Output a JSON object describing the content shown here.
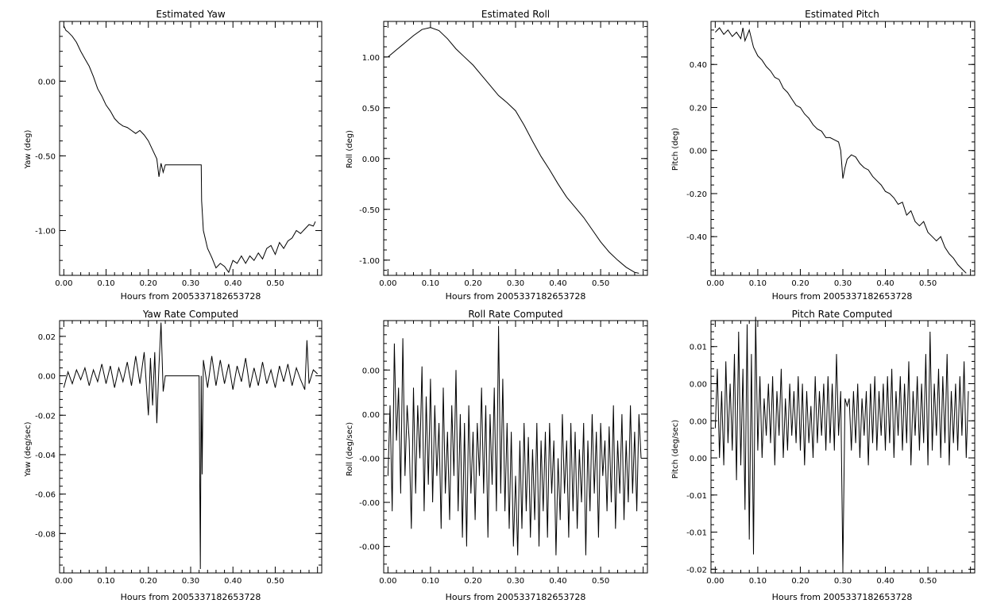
{
  "chart_data": [
    {
      "type": "line",
      "title": "Estimated Yaw",
      "xlabel": "Hours from 2005337182653728",
      "ylabel": "Yaw (deg)",
      "xlim": [
        -0.01,
        0.61
      ],
      "ylim": [
        -1.3,
        0.4
      ],
      "xticks": [
        "0.00",
        "0.10",
        "0.20",
        "0.30",
        "0.40",
        "0.50"
      ],
      "yticks": [
        {
          "value": 0.0,
          "label": "0.00"
        },
        {
          "value": -0.5,
          "label": "-0.50"
        },
        {
          "value": -1.0,
          "label": "-1.00"
        }
      ],
      "grid": false,
      "line_color": "#000000",
      "x": [
        0.0,
        0.005,
        0.01,
        0.02,
        0.03,
        0.04,
        0.05,
        0.06,
        0.07,
        0.08,
        0.09,
        0.1,
        0.11,
        0.12,
        0.13,
        0.14,
        0.15,
        0.16,
        0.17,
        0.18,
        0.19,
        0.2,
        0.21,
        0.22,
        0.225,
        0.23,
        0.235,
        0.24,
        0.25,
        0.27,
        0.29,
        0.31,
        0.325,
        0.326,
        0.33,
        0.34,
        0.35,
        0.36,
        0.37,
        0.38,
        0.39,
        0.4,
        0.41,
        0.42,
        0.43,
        0.44,
        0.45,
        0.46,
        0.47,
        0.48,
        0.49,
        0.5,
        0.51,
        0.52,
        0.53,
        0.54,
        0.55,
        0.56,
        0.57,
        0.58,
        0.59,
        0.595
      ],
      "y": [
        0.37,
        0.34,
        0.33,
        0.3,
        0.26,
        0.2,
        0.15,
        0.1,
        0.03,
        -0.05,
        -0.1,
        -0.16,
        -0.2,
        -0.25,
        -0.28,
        -0.3,
        -0.31,
        -0.33,
        -0.35,
        -0.33,
        -0.36,
        -0.4,
        -0.46,
        -0.52,
        -0.64,
        -0.55,
        -0.61,
        -0.56,
        -0.56,
        -0.56,
        -0.56,
        -0.56,
        -0.56,
        -0.8,
        -1.0,
        -1.12,
        -1.18,
        -1.25,
        -1.22,
        -1.24,
        -1.28,
        -1.2,
        -1.22,
        -1.17,
        -1.22,
        -1.17,
        -1.2,
        -1.15,
        -1.19,
        -1.12,
        -1.1,
        -1.16,
        -1.08,
        -1.12,
        -1.07,
        -1.05,
        -1.0,
        -1.02,
        -0.99,
        -0.96,
        -0.97,
        -0.94
      ]
    },
    {
      "type": "line",
      "title": "Estimated Roll",
      "xlabel": "Hours from 2005337182653728",
      "ylabel": "Roll (deg)",
      "xlim": [
        -0.01,
        0.61
      ],
      "ylim": [
        -1.15,
        1.35
      ],
      "xticks": [
        "0.00",
        "0.10",
        "0.20",
        "0.30",
        "0.40",
        "0.50"
      ],
      "yticks": [
        {
          "value": 1.0,
          "label": "1.00"
        },
        {
          "value": 0.5,
          "label": "0.50"
        },
        {
          "value": 0.0,
          "label": "0.00"
        },
        {
          "value": -0.5,
          "label": "-0.50"
        },
        {
          "value": -1.0,
          "label": "-1.00"
        }
      ],
      "grid": false,
      "line_color": "#000000",
      "x": [
        0.0,
        0.02,
        0.04,
        0.06,
        0.08,
        0.1,
        0.12,
        0.14,
        0.16,
        0.18,
        0.2,
        0.22,
        0.24,
        0.26,
        0.28,
        0.3,
        0.32,
        0.34,
        0.36,
        0.38,
        0.4,
        0.42,
        0.44,
        0.46,
        0.48,
        0.5,
        0.52,
        0.54,
        0.56,
        0.58,
        0.59
      ],
      "y": [
        1.0,
        1.07,
        1.14,
        1.21,
        1.27,
        1.29,
        1.26,
        1.18,
        1.08,
        1.0,
        0.92,
        0.82,
        0.72,
        0.62,
        0.55,
        0.47,
        0.33,
        0.17,
        0.02,
        -0.11,
        -0.25,
        -0.38,
        -0.48,
        -0.58,
        -0.7,
        -0.82,
        -0.92,
        -1.0,
        -1.07,
        -1.12,
        -1.13
      ]
    },
    {
      "type": "line",
      "title": "Estimated Pitch",
      "xlabel": "Hours from 2005337182653728",
      "ylabel": "Pitch (deg)",
      "xlim": [
        -0.01,
        0.61
      ],
      "ylim": [
        -0.58,
        0.6
      ],
      "xticks": [
        "0.00",
        "0.10",
        "0.20",
        "0.30",
        "0.40",
        "0.50"
      ],
      "yticks": [
        {
          "value": 0.4,
          "label": "0.40"
        },
        {
          "value": 0.2,
          "label": "0.20"
        },
        {
          "value": 0.0,
          "label": "0.00"
        },
        {
          "value": -0.2,
          "label": "-0.20"
        },
        {
          "value": -0.4,
          "label": "-0.40"
        }
      ],
      "grid": false,
      "line_color": "#000000",
      "x": [
        0.0,
        0.01,
        0.02,
        0.03,
        0.04,
        0.05,
        0.06,
        0.065,
        0.07,
        0.08,
        0.09,
        0.1,
        0.11,
        0.12,
        0.13,
        0.14,
        0.15,
        0.16,
        0.17,
        0.18,
        0.19,
        0.2,
        0.21,
        0.22,
        0.23,
        0.24,
        0.25,
        0.26,
        0.27,
        0.28,
        0.29,
        0.295,
        0.3,
        0.305,
        0.31,
        0.32,
        0.33,
        0.34,
        0.35,
        0.36,
        0.37,
        0.38,
        0.39,
        0.4,
        0.41,
        0.42,
        0.43,
        0.44,
        0.45,
        0.46,
        0.47,
        0.48,
        0.49,
        0.5,
        0.51,
        0.52,
        0.53,
        0.54,
        0.55,
        0.56,
        0.57,
        0.58,
        0.59
      ],
      "y": [
        0.55,
        0.57,
        0.54,
        0.56,
        0.53,
        0.55,
        0.52,
        0.57,
        0.51,
        0.56,
        0.48,
        0.44,
        0.42,
        0.39,
        0.37,
        0.34,
        0.33,
        0.29,
        0.27,
        0.24,
        0.21,
        0.2,
        0.17,
        0.15,
        0.12,
        0.1,
        0.09,
        0.06,
        0.06,
        0.05,
        0.04,
        0.0,
        -0.13,
        -0.08,
        -0.04,
        -0.02,
        -0.03,
        -0.06,
        -0.08,
        -0.09,
        -0.12,
        -0.14,
        -0.16,
        -0.19,
        -0.2,
        -0.22,
        -0.25,
        -0.24,
        -0.3,
        -0.28,
        -0.33,
        -0.35,
        -0.33,
        -0.38,
        -0.4,
        -0.42,
        -0.4,
        -0.45,
        -0.48,
        -0.5,
        -0.53,
        -0.55,
        -0.57
      ]
    },
    {
      "type": "line",
      "title": "Yaw Rate Computed",
      "xlabel": "Hours from 2005337182653728",
      "ylabel": "Yaw (deg/sec)",
      "xlim": [
        -0.01,
        0.61
      ],
      "ylim": [
        -0.1,
        0.028
      ],
      "xticks": [
        "0.00",
        "0.10",
        "0.20",
        "0.30",
        "0.40",
        "0.50"
      ],
      "yticks": [
        {
          "value": 0.02,
          "label": "0.02"
        },
        {
          "value": 0.0,
          "label": "0.00"
        },
        {
          "value": -0.02,
          "label": "-0.02"
        },
        {
          "value": -0.04,
          "label": "-0.04"
        },
        {
          "value": -0.06,
          "label": "-0.06"
        },
        {
          "value": -0.08,
          "label": "-0.08"
        }
      ],
      "grid": false,
      "line_color": "#000000",
      "x": [
        0.0,
        0.01,
        0.02,
        0.03,
        0.04,
        0.05,
        0.06,
        0.07,
        0.08,
        0.09,
        0.1,
        0.11,
        0.12,
        0.13,
        0.14,
        0.15,
        0.16,
        0.17,
        0.18,
        0.19,
        0.2,
        0.205,
        0.21,
        0.215,
        0.22,
        0.225,
        0.23,
        0.235,
        0.24,
        0.26,
        0.28,
        0.3,
        0.32,
        0.323,
        0.325,
        0.327,
        0.33,
        0.34,
        0.35,
        0.36,
        0.37,
        0.38,
        0.39,
        0.4,
        0.41,
        0.42,
        0.43,
        0.44,
        0.45,
        0.46,
        0.47,
        0.48,
        0.49,
        0.5,
        0.51,
        0.52,
        0.53,
        0.54,
        0.55,
        0.56,
        0.57,
        0.575,
        0.58,
        0.59,
        0.6
      ],
      "y": [
        -0.006,
        0.002,
        -0.004,
        0.003,
        -0.002,
        0.004,
        -0.005,
        0.003,
        -0.003,
        0.006,
        -0.004,
        0.005,
        -0.006,
        0.004,
        -0.003,
        0.007,
        -0.005,
        0.01,
        -0.004,
        0.012,
        -0.02,
        0.009,
        -0.015,
        0.012,
        -0.024,
        0.005,
        0.027,
        -0.008,
        0.0,
        0.0,
        0.0,
        0.0,
        0.0,
        -0.098,
        0.0,
        -0.05,
        0.008,
        -0.006,
        0.01,
        -0.005,
        0.008,
        -0.004,
        0.006,
        -0.007,
        0.005,
        -0.003,
        0.009,
        -0.006,
        0.004,
        -0.005,
        0.007,
        -0.004,
        0.003,
        -0.006,
        0.005,
        -0.003,
        0.006,
        -0.005,
        0.004,
        -0.002,
        -0.007,
        0.018,
        -0.004,
        0.003,
        0.001
      ]
    },
    {
      "type": "line",
      "title": "Roll Rate Computed",
      "xlabel": "Hours from 2005337182653728",
      "ylabel": "Roll (deg/sec)",
      "xlim": [
        -0.01,
        0.61
      ],
      "ylim": [
        -0.065,
        0.078
      ],
      "xticks": [
        "0.00",
        "0.10",
        "0.20",
        "0.30",
        "0.40",
        "0.50"
      ],
      "yticks": [
        {
          "value": 0.05,
          "label": "0.00"
        },
        {
          "value": 0.025,
          "label": "0.00"
        },
        {
          "value": 0.0,
          "label": "-0.00"
        },
        {
          "value": -0.025,
          "label": "-0.00"
        },
        {
          "value": -0.05,
          "label": "-0.00"
        }
      ],
      "grid": false,
      "line_color": "#000000",
      "x": [
        0.0,
        0.005,
        0.01,
        0.015,
        0.02,
        0.025,
        0.03,
        0.035,
        0.04,
        0.045,
        0.05,
        0.055,
        0.06,
        0.065,
        0.07,
        0.075,
        0.08,
        0.085,
        0.09,
        0.095,
        0.1,
        0.105,
        0.11,
        0.115,
        0.12,
        0.125,
        0.13,
        0.135,
        0.14,
        0.145,
        0.15,
        0.155,
        0.16,
        0.165,
        0.17,
        0.175,
        0.18,
        0.185,
        0.19,
        0.195,
        0.2,
        0.205,
        0.21,
        0.215,
        0.22,
        0.225,
        0.23,
        0.235,
        0.24,
        0.245,
        0.25,
        0.255,
        0.26,
        0.265,
        0.27,
        0.275,
        0.28,
        0.285,
        0.29,
        0.295,
        0.3,
        0.305,
        0.31,
        0.315,
        0.32,
        0.325,
        0.33,
        0.335,
        0.34,
        0.345,
        0.35,
        0.355,
        0.36,
        0.365,
        0.37,
        0.375,
        0.38,
        0.385,
        0.39,
        0.395,
        0.4,
        0.405,
        0.41,
        0.415,
        0.42,
        0.425,
        0.43,
        0.435,
        0.44,
        0.445,
        0.45,
        0.455,
        0.46,
        0.465,
        0.47,
        0.475,
        0.48,
        0.485,
        0.49,
        0.495,
        0.5,
        0.505,
        0.51,
        0.515,
        0.52,
        0.525,
        0.53,
        0.535,
        0.54,
        0.545,
        0.55,
        0.555,
        0.56,
        0.565,
        0.57,
        0.575,
        0.58,
        0.585,
        0.59,
        0.595
      ],
      "y": [
        -0.01,
        0.03,
        -0.03,
        0.065,
        0.01,
        0.04,
        -0.02,
        0.068,
        -0.01,
        0.03,
        0.01,
        -0.04,
        0.04,
        -0.02,
        0.03,
        0.0,
        0.052,
        -0.03,
        0.035,
        -0.015,
        0.045,
        -0.025,
        0.03,
        -0.01,
        0.02,
        -0.04,
        0.04,
        -0.02,
        0.015,
        -0.035,
        0.03,
        -0.01,
        0.05,
        -0.03,
        0.025,
        -0.045,
        0.02,
        -0.05,
        0.03,
        -0.02,
        0.015,
        -0.035,
        0.02,
        -0.01,
        0.04,
        -0.02,
        0.03,
        -0.045,
        0.025,
        -0.015,
        0.04,
        -0.03,
        0.075,
        -0.02,
        0.045,
        -0.03,
        0.02,
        -0.04,
        0.015,
        -0.05,
        -0.01,
        -0.055,
        0.01,
        -0.04,
        0.02,
        -0.03,
        0.012,
        -0.045,
        0.005,
        -0.035,
        0.02,
        -0.05,
        0.01,
        -0.03,
        0.015,
        -0.045,
        0.02,
        -0.02,
        0.01,
        -0.055,
        0.0,
        -0.035,
        0.025,
        -0.02,
        0.01,
        -0.045,
        0.02,
        -0.03,
        0.015,
        -0.04,
        0.005,
        -0.025,
        0.02,
        -0.055,
        0.01,
        -0.03,
        0.025,
        -0.02,
        0.015,
        -0.045,
        0.02,
        -0.01,
        0.01,
        -0.03,
        0.018,
        -0.025,
        0.03,
        -0.04,
        0.01,
        -0.02,
        0.025,
        -0.035,
        0.01,
        -0.025,
        0.03,
        -0.02,
        0.015,
        -0.03,
        0.025,
        0.0
      ]
    },
    {
      "type": "line",
      "title": "Pitch Rate Computed",
      "xlabel": "Hours from 2005337182653728",
      "ylabel": "Pitch (deg/sec)",
      "xlim": [
        -0.01,
        0.61
      ],
      "ylim": [
        -0.0205,
        0.0135
      ],
      "xticks": [
        "0.00",
        "0.10",
        "0.20",
        "0.30",
        "0.40",
        "0.50"
      ],
      "yticks": [
        {
          "value": 0.01,
          "label": "0.01"
        },
        {
          "value": 0.005,
          "label": "0.00"
        },
        {
          "value": 0.0,
          "label": "0.00"
        },
        {
          "value": -0.005,
          "label": "0.00"
        },
        {
          "value": -0.01,
          "label": "-0.01"
        },
        {
          "value": -0.015,
          "label": "-0.01"
        },
        {
          "value": -0.02,
          "label": "-0.02"
        }
      ],
      "grid": false,
      "line_color": "#000000",
      "x": [
        0.0,
        0.005,
        0.01,
        0.015,
        0.02,
        0.025,
        0.03,
        0.035,
        0.04,
        0.045,
        0.05,
        0.055,
        0.06,
        0.065,
        0.07,
        0.075,
        0.08,
        0.085,
        0.09,
        0.095,
        0.1,
        0.105,
        0.11,
        0.115,
        0.12,
        0.125,
        0.13,
        0.135,
        0.14,
        0.145,
        0.15,
        0.155,
        0.16,
        0.165,
        0.17,
        0.175,
        0.18,
        0.185,
        0.19,
        0.195,
        0.2,
        0.205,
        0.21,
        0.215,
        0.22,
        0.225,
        0.23,
        0.235,
        0.24,
        0.245,
        0.25,
        0.255,
        0.26,
        0.265,
        0.27,
        0.275,
        0.28,
        0.285,
        0.29,
        0.295,
        0.3,
        0.305,
        0.31,
        0.315,
        0.32,
        0.325,
        0.33,
        0.335,
        0.34,
        0.345,
        0.35,
        0.355,
        0.36,
        0.365,
        0.37,
        0.375,
        0.38,
        0.385,
        0.39,
        0.395,
        0.4,
        0.405,
        0.41,
        0.415,
        0.42,
        0.425,
        0.43,
        0.435,
        0.44,
        0.445,
        0.45,
        0.455,
        0.46,
        0.465,
        0.47,
        0.475,
        0.48,
        0.485,
        0.49,
        0.495,
        0.5,
        0.505,
        0.51,
        0.515,
        0.52,
        0.525,
        0.53,
        0.535,
        0.54,
        0.545,
        0.55,
        0.555,
        0.56,
        0.565,
        0.57,
        0.575,
        0.58,
        0.585,
        0.59,
        0.595
      ],
      "y": [
        -0.001,
        0.007,
        -0.005,
        0.004,
        -0.006,
        0.008,
        -0.003,
        0.005,
        -0.004,
        0.009,
        -0.008,
        0.012,
        -0.006,
        0.007,
        -0.012,
        0.013,
        -0.016,
        0.009,
        -0.018,
        0.014,
        -0.004,
        0.006,
        -0.005,
        0.003,
        -0.002,
        0.005,
        -0.003,
        0.006,
        -0.006,
        0.004,
        -0.002,
        0.007,
        -0.005,
        0.003,
        -0.004,
        0.005,
        -0.002,
        0.004,
        -0.003,
        0.006,
        -0.004,
        0.005,
        -0.006,
        0.004,
        -0.003,
        0.002,
        -0.005,
        0.006,
        -0.003,
        0.004,
        -0.002,
        0.005,
        -0.004,
        0.006,
        -0.003,
        0.005,
        -0.004,
        0.009,
        -0.002,
        0.004,
        -0.02,
        0.003,
        0.002,
        0.003,
        -0.004,
        0.004,
        -0.003,
        0.005,
        -0.005,
        0.003,
        -0.002,
        0.004,
        -0.006,
        0.005,
        -0.003,
        0.006,
        -0.004,
        0.004,
        -0.002,
        0.005,
        -0.004,
        0.006,
        -0.003,
        0.007,
        -0.005,
        0.004,
        -0.002,
        0.006,
        -0.004,
        0.005,
        -0.003,
        0.008,
        -0.006,
        0.004,
        -0.002,
        0.006,
        -0.004,
        0.005,
        -0.003,
        0.009,
        -0.006,
        0.012,
        -0.004,
        0.005,
        -0.002,
        0.007,
        -0.005,
        0.006,
        -0.003,
        0.009,
        -0.006,
        0.004,
        -0.003,
        0.005,
        -0.004,
        0.006,
        -0.002,
        0.008,
        -0.005,
        0.004
      ]
    }
  ]
}
